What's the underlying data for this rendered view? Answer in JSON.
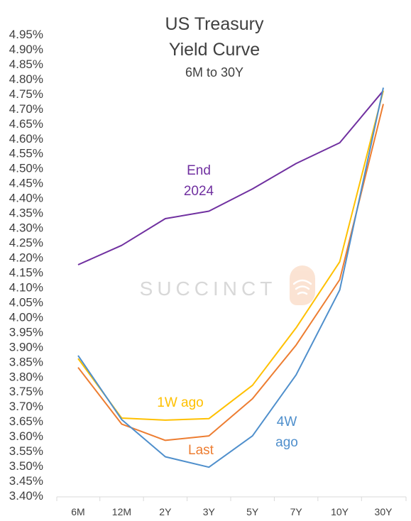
{
  "chart_data": {
    "type": "line",
    "title_lines": [
      "US Treasury",
      "Yield Curve",
      "6M to 30Y"
    ],
    "categories": [
      "6M",
      "12M",
      "2Y",
      "3Y",
      "5Y",
      "7Y",
      "10Y",
      "30Y"
    ],
    "ylim": [
      3.4,
      4.95
    ],
    "ystep": 0.05,
    "ytick_format": "percent_2dp",
    "grid": false,
    "legend": "inline labels",
    "series": [
      {
        "name": "End\n2024",
        "color": "#7030a0",
        "values": [
          4.175,
          4.24,
          4.33,
          4.355,
          4.43,
          4.515,
          4.585,
          4.76
        ]
      },
      {
        "name": "1W ago",
        "color": "#ffc000",
        "values": [
          3.86,
          3.66,
          3.653,
          3.658,
          3.77,
          3.963,
          4.185,
          4.76
        ]
      },
      {
        "name": "Last",
        "color": "#ed7d31",
        "values": [
          3.83,
          3.64,
          3.585,
          3.6,
          3.725,
          3.905,
          4.125,
          4.715
        ]
      },
      {
        "name": "4W\nago",
        "color": "#4f8fcc",
        "values": [
          3.87,
          3.655,
          3.53,
          3.495,
          3.6,
          3.805,
          4.09,
          4.77
        ]
      }
    ],
    "watermark": "SUCCINCT"
  }
}
